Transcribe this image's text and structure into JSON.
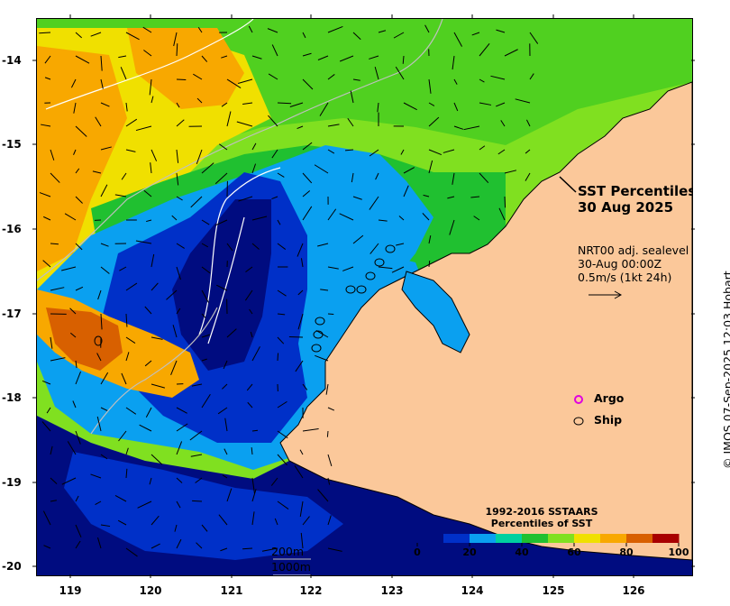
{
  "title": {
    "line1": "SST Percentiles",
    "line2": "30 Aug 2025"
  },
  "vectors": {
    "product": "NRT00 adj. sealevel",
    "time": "30-Aug 00:00Z",
    "scale_text": "0.5m/s (1kt 24h)"
  },
  "legend": {
    "argo": "Argo",
    "ship": "Ship",
    "argo_color": "#e000e0",
    "ship_color": "#000000"
  },
  "contours": {
    "c200": "200m",
    "c1000": "1000m"
  },
  "colorbar": {
    "title_line1": "1992-2016 SSTAARS",
    "title_line2": "Percentiles of SST",
    "ticks": [
      "0",
      "20",
      "40",
      "60",
      "80",
      "100"
    ],
    "colors": [
      "#000c80",
      "#0030c8",
      "#0aa0f0",
      "#00d0a0",
      "#20c030",
      "#80e020",
      "#f0e000",
      "#f8a800",
      "#d86000",
      "#a80000"
    ]
  },
  "credit": "© IMOS 07-Sep-2025 12:03 Hobart",
  "axes": {
    "x_ticks": [
      "119",
      "120",
      "121",
      "122",
      "123",
      "124",
      "125",
      "126"
    ],
    "y_ticks": [
      "-14",
      "-15",
      "-16",
      "-17",
      "-18",
      "-19",
      "-20"
    ]
  },
  "colors": {
    "land": "#fbc89a",
    "deep_blue": "#000c80",
    "blue": "#0030c8",
    "light_blue": "#0aa0f0",
    "teal": "#00d0a0",
    "green": "#20c030",
    "lime": "#80e020",
    "yellow": "#f0e000",
    "orange": "#f8a800",
    "dark_orange": "#d86000"
  }
}
